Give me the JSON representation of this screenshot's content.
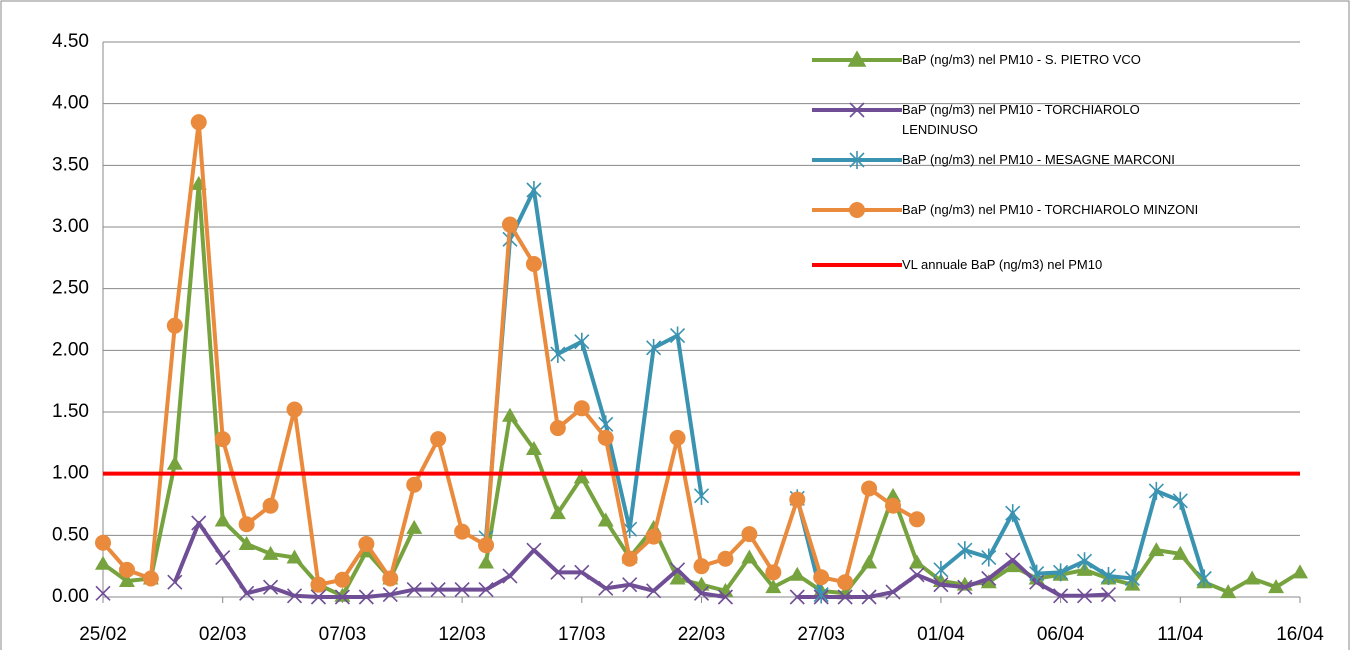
{
  "chart_data": {
    "type": "line",
    "categories": [
      "25/02",
      null,
      null,
      null,
      null,
      "02/03",
      null,
      null,
      null,
      null,
      "07/03",
      null,
      null,
      null,
      null,
      "12/03",
      null,
      null,
      null,
      null,
      "17/03",
      null,
      null,
      null,
      null,
      "22/03",
      null,
      null,
      null,
      null,
      "27/03",
      null,
      null,
      null,
      null,
      "01/04",
      null,
      null,
      null,
      null,
      "06/04",
      null,
      null,
      null,
      null,
      "11/04",
      null,
      null,
      null,
      null,
      "16/04"
    ],
    "ylim": [
      0,
      4.5
    ],
    "yticks": [
      {
        "value": 0,
        "label": "0.00"
      },
      {
        "value": 0.5,
        "label": "0.50"
      },
      {
        "value": 1,
        "label": "1.00"
      },
      {
        "value": 1.5,
        "label": "1.50"
      },
      {
        "value": 2,
        "label": "2.00"
      },
      {
        "value": 2.5,
        "label": "2.50"
      },
      {
        "value": 3,
        "label": "3.00"
      },
      {
        "value": 3.5,
        "label": "3.50"
      },
      {
        "value": 4,
        "label": "4.00"
      },
      {
        "value": 4.5,
        "label": "4.50"
      }
    ],
    "grid": true,
    "series": [
      {
        "name": "BaP (ng/m3) nel PM10 - S. PIETRO VCO",
        "color": "#77a33f",
        "marker": "triangle",
        "values": [
          0.27,
          0.13,
          0.15,
          1.08,
          3.35,
          0.62,
          0.43,
          0.35,
          0.32,
          0.1,
          0.01,
          0.37,
          0.15,
          0.56,
          null,
          null,
          0.28,
          1.47,
          1.2,
          0.68,
          0.97,
          0.62,
          0.32,
          0.56,
          0.15,
          0.1,
          0.05,
          0.32,
          0.08,
          0.18,
          0.05,
          0.03,
          0.28,
          0.82,
          0.28,
          0.13,
          0.1,
          0.12,
          0.25,
          0.15,
          0.18,
          0.22,
          0.15,
          0.1,
          0.38,
          0.35,
          0.12,
          0.04,
          0.15,
          0.08,
          0.2
        ]
      },
      {
        "name": "BaP (ng/m3) nel PM10 - TORCHIAROLO LENDINUSO",
        "color": "#6f4e96",
        "marker": "x",
        "values": [
          0.03,
          null,
          null,
          0.12,
          0.6,
          0.32,
          0.03,
          0.08,
          0.01,
          0.0,
          0.0,
          0.0,
          0.02,
          0.06,
          0.06,
          0.06,
          0.06,
          0.17,
          0.38,
          0.2,
          0.2,
          0.07,
          0.1,
          0.05,
          0.22,
          0.03,
          0.0,
          null,
          null,
          0.0,
          0.0,
          0.0,
          0.0,
          0.04,
          0.18,
          0.1,
          0.08,
          0.15,
          0.3,
          0.12,
          0.01,
          0.01,
          0.02,
          null,
          null,
          null,
          null,
          null,
          null,
          null,
          null
        ]
      },
      {
        "name": "BaP (ng/m3)  nel PM10 - MESAGNE MARCONI",
        "color": "#3a93b0",
        "marker": "star",
        "values": [
          null,
          null,
          null,
          null,
          null,
          null,
          null,
          null,
          null,
          null,
          null,
          null,
          null,
          null,
          null,
          null,
          0.48,
          2.9,
          3.3,
          1.97,
          2.07,
          1.4,
          0.55,
          2.02,
          2.12,
          0.82,
          null,
          null,
          null,
          0.8,
          0.02,
          null,
          null,
          null,
          null,
          0.22,
          0.38,
          0.32,
          0.68,
          0.19,
          0.2,
          0.29,
          0.17,
          0.15,
          0.86,
          0.78,
          0.15,
          null,
          null,
          null,
          null
        ]
      },
      {
        "name": "BaP (ng/m3) nel PM10 - TORCHIAROLO MINZONI",
        "color": "#e98a3c",
        "marker": "circle",
        "values": [
          0.44,
          0.22,
          0.15,
          2.2,
          3.85,
          1.28,
          0.59,
          0.74,
          1.52,
          0.1,
          0.14,
          0.43,
          0.15,
          0.91,
          1.28,
          0.53,
          0.42,
          3.02,
          2.7,
          1.37,
          1.53,
          1.29,
          0.31,
          0.49,
          1.29,
          0.25,
          0.31,
          0.51,
          0.2,
          0.79,
          0.16,
          0.12,
          0.88,
          0.74,
          0.63,
          null,
          null,
          null,
          null,
          null,
          null,
          null,
          null,
          null,
          null,
          null,
          null,
          null,
          null,
          null,
          null
        ]
      },
      {
        "name": "VL annuale BaP (ng/m3) nel PM10",
        "color": "#ff0000",
        "marker": "none",
        "values": [
          1,
          1,
          1,
          1,
          1,
          1,
          1,
          1,
          1,
          1,
          1,
          1,
          1,
          1,
          1,
          1,
          1,
          1,
          1,
          1,
          1,
          1,
          1,
          1,
          1,
          1,
          1,
          1,
          1,
          1,
          1,
          1,
          1,
          1,
          1,
          1,
          1,
          1,
          1,
          1,
          1,
          1,
          1,
          1,
          1,
          1,
          1,
          1,
          1,
          1,
          1
        ]
      }
    ]
  }
}
